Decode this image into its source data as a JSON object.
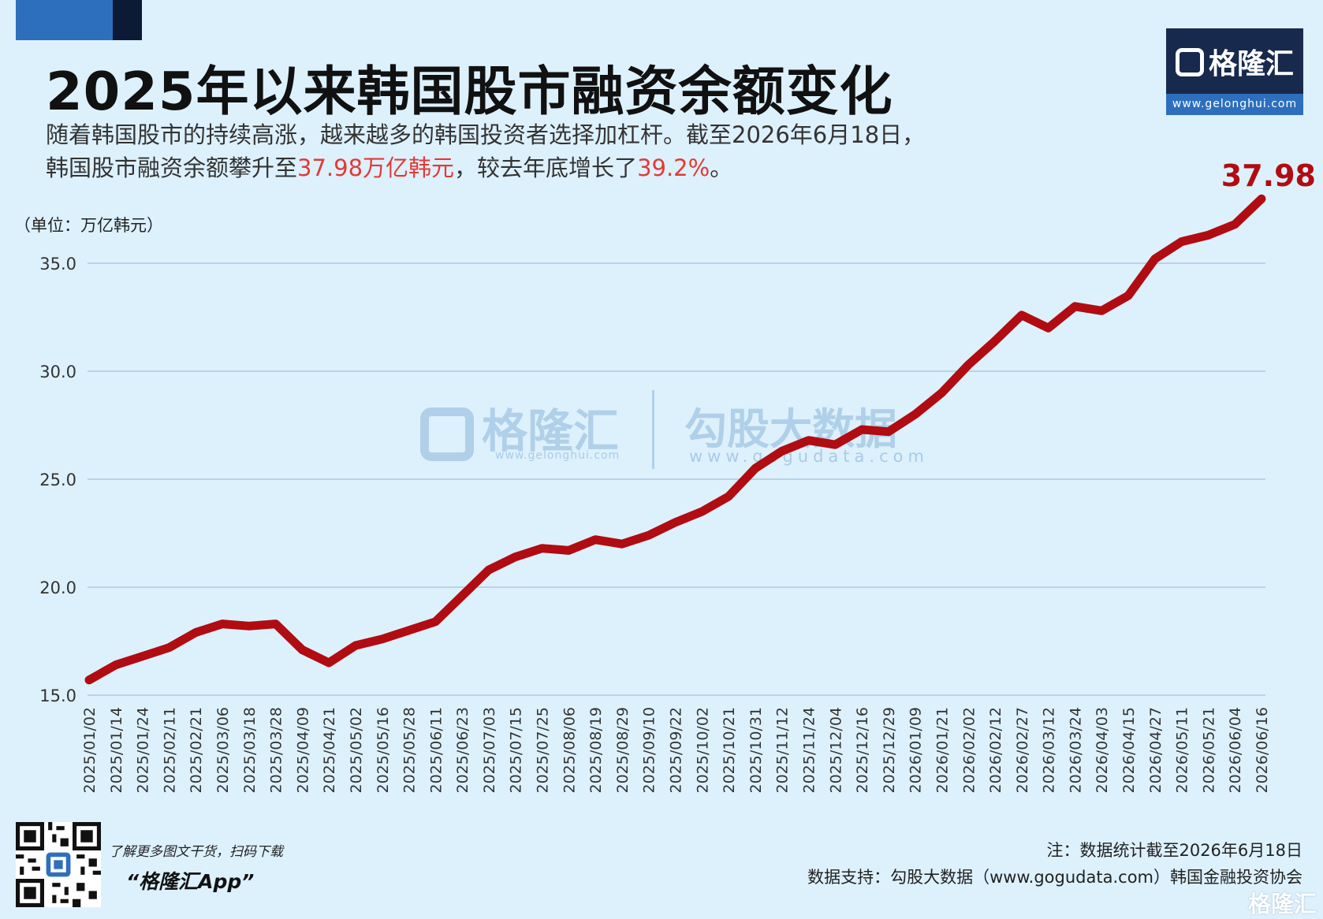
{
  "header": {
    "title": "2025年以来韩国股市融资余额变化",
    "subtitle_line1": "随着韩国股市的持续高涨，越来越多的韩国投资者选择加杠杆。截至2026年6月18日，",
    "subtitle_line2_a": "韩国股市融资余额攀升至",
    "subtitle_line2_hl1": "37.98万亿韩元",
    "subtitle_line2_b": "，较去年底增长了",
    "subtitle_line2_hl2": "39.2%",
    "subtitle_line2_c": "。",
    "highlight_color": "#e53935"
  },
  "logo": {
    "text": "格隆汇",
    "url": "www.gelonghui.com"
  },
  "watermark": {
    "brand1": "格隆汇",
    "brand1_url": "www.gelonghui.com",
    "brand2": "勾股大数据",
    "brand2_url": "www.gogudata.com"
  },
  "footer": {
    "qr_caption": "了解更多图文干货，扫码下载",
    "app_name": "“格隆汇App”",
    "note": "注：数据统计截至2026年6月18日",
    "source": "数据支持：勾股大数据（www.gogudata.com）韩国金融投资协会",
    "corner_watermark": "格隆汇"
  },
  "chart_data": {
    "type": "line",
    "unit_label": "（单位：万亿韩元）",
    "ylim": [
      15.0,
      37.98
    ],
    "yticks": [
      "35.0",
      "30.0",
      "25.0",
      "20.0",
      "15.0"
    ],
    "grid": true,
    "line_color": "#b00c12",
    "last_value_label": "37.98",
    "x": [
      "2025/01/02",
      "2025/01/14",
      "2025/01/24",
      "2025/02/11",
      "2025/02/21",
      "2025/03/06",
      "2025/03/18",
      "2025/03/28",
      "2025/04/09",
      "2025/04/21",
      "2025/05/02",
      "2025/05/16",
      "2025/05/28",
      "2025/06/11",
      "2025/06/23",
      "2025/07/03",
      "2025/07/15",
      "2025/07/25",
      "2025/08/06",
      "2025/08/19",
      "2025/08/29",
      "2025/09/10",
      "2025/09/22",
      "2025/10/02",
      "2025/10/21",
      "2025/10/31",
      "2025/11/12",
      "2025/11/24",
      "2025/12/04",
      "2025/12/16",
      "2025/12/29",
      "2026/01/09",
      "2026/01/21",
      "2026/02/02",
      "2026/02/12",
      "2026/02/27",
      "2026/03/12",
      "2026/03/24",
      "2026/04/03",
      "2026/04/15",
      "2026/04/27",
      "2026/05/11",
      "2026/05/21",
      "2026/06/04",
      "2026/06/16"
    ],
    "series": [
      {
        "values": [
          15.7,
          16.4,
          16.8,
          17.2,
          17.9,
          18.3,
          18.2,
          18.3,
          17.1,
          16.5,
          17.3,
          17.6,
          18.0,
          18.4,
          19.6,
          20.8,
          21.4,
          21.8,
          21.7,
          22.2,
          22.0,
          22.4,
          23.0,
          23.5,
          24.2,
          25.5,
          26.3,
          26.8,
          26.6,
          27.3,
          27.2,
          28.0,
          29.0,
          30.3,
          31.4,
          32.6,
          32.0,
          33.0,
          32.8,
          33.5,
          35.2,
          36.0,
          36.3,
          36.8,
          37.98
        ]
      }
    ]
  }
}
